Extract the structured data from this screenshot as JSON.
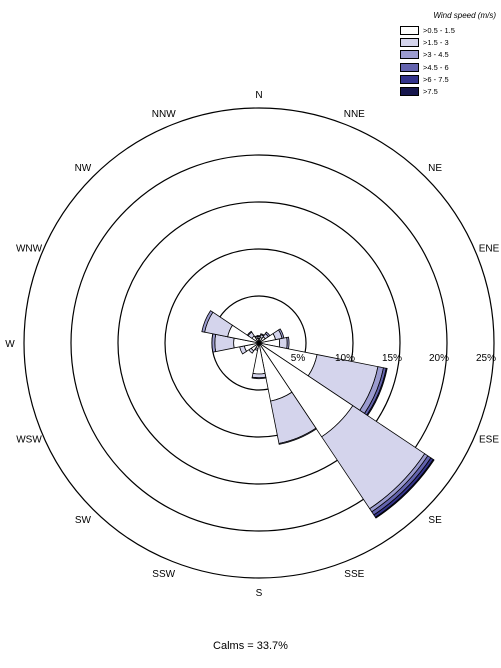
{
  "chart_data": {
    "type": "wind-rose",
    "legend_title": "Wind speed (m/s)",
    "legend_position": "top-right",
    "speed_bins": [
      {
        "label": ">0.5 - 1.5",
        "color": "#ffffff"
      },
      {
        "label": ">1.5 - 3",
        "color": "#d4d4ec"
      },
      {
        "label": ">3 - 4.5",
        "color": "#9b9bcf"
      },
      {
        "label": ">4.5 - 6",
        "color": "#6363ae"
      },
      {
        "label": ">6 - 7.5",
        "color": "#33338c"
      },
      {
        "label": ">7.5",
        "color": "#17174e"
      }
    ],
    "directions": [
      "N",
      "NNE",
      "NE",
      "ENE",
      "E",
      "ESE",
      "SE",
      "SSE",
      "S",
      "SSW",
      "SW",
      "WSW",
      "W",
      "WNW",
      "NW",
      "NNW"
    ],
    "rings": [
      {
        "value": 5,
        "label": "5%"
      },
      {
        "value": 10,
        "label": "10%"
      },
      {
        "value": 15,
        "label": "15%"
      },
      {
        "value": 20,
        "label": "20%"
      },
      {
        "value": 25,
        "label": "25%"
      }
    ],
    "radial_max": 25,
    "frequencies_percent": {
      "N": [
        0.5,
        0.2,
        0.1,
        0,
        0,
        0
      ],
      "NNE": [
        0.6,
        0.3,
        0.1,
        0,
        0,
        0
      ],
      "NE": [
        0.8,
        0.4,
        0.2,
        0,
        0,
        0
      ],
      "ENE": [
        1.8,
        0.7,
        0.2,
        0,
        0,
        0
      ],
      "E": [
        2.2,
        0.8,
        0.2,
        0,
        0,
        0
      ],
      "ESE": [
        6.3,
        6.6,
        0.6,
        0.3,
        0.1,
        0
      ],
      "SE": [
        12.0,
        9.2,
        0.4,
        0.4,
        0.3,
        0.1
      ],
      "SSE": [
        6.3,
        4.6,
        0.1,
        0,
        0,
        0
      ],
      "S": [
        3.3,
        0.4,
        0.1,
        0,
        0,
        0
      ],
      "SSW": [
        0.6,
        0.2,
        0,
        0,
        0,
        0
      ],
      "SW": [
        1.0,
        0.3,
        0,
        0,
        0,
        0
      ],
      "WSW": [
        1.6,
        0.5,
        0,
        0,
        0,
        0
      ],
      "W": [
        2.7,
        2.0,
        0.3,
        0,
        0,
        0
      ],
      "WNW": [
        3.4,
        2.5,
        0.3,
        0,
        0,
        0
      ],
      "NW": [
        0.9,
        0.5,
        0.1,
        0,
        0,
        0
      ],
      "NNW": [
        0.5,
        0.2,
        0.1,
        0,
        0,
        0
      ]
    },
    "calms_text": "Calms = 33.7%",
    "calms_percent": 33.7
  }
}
